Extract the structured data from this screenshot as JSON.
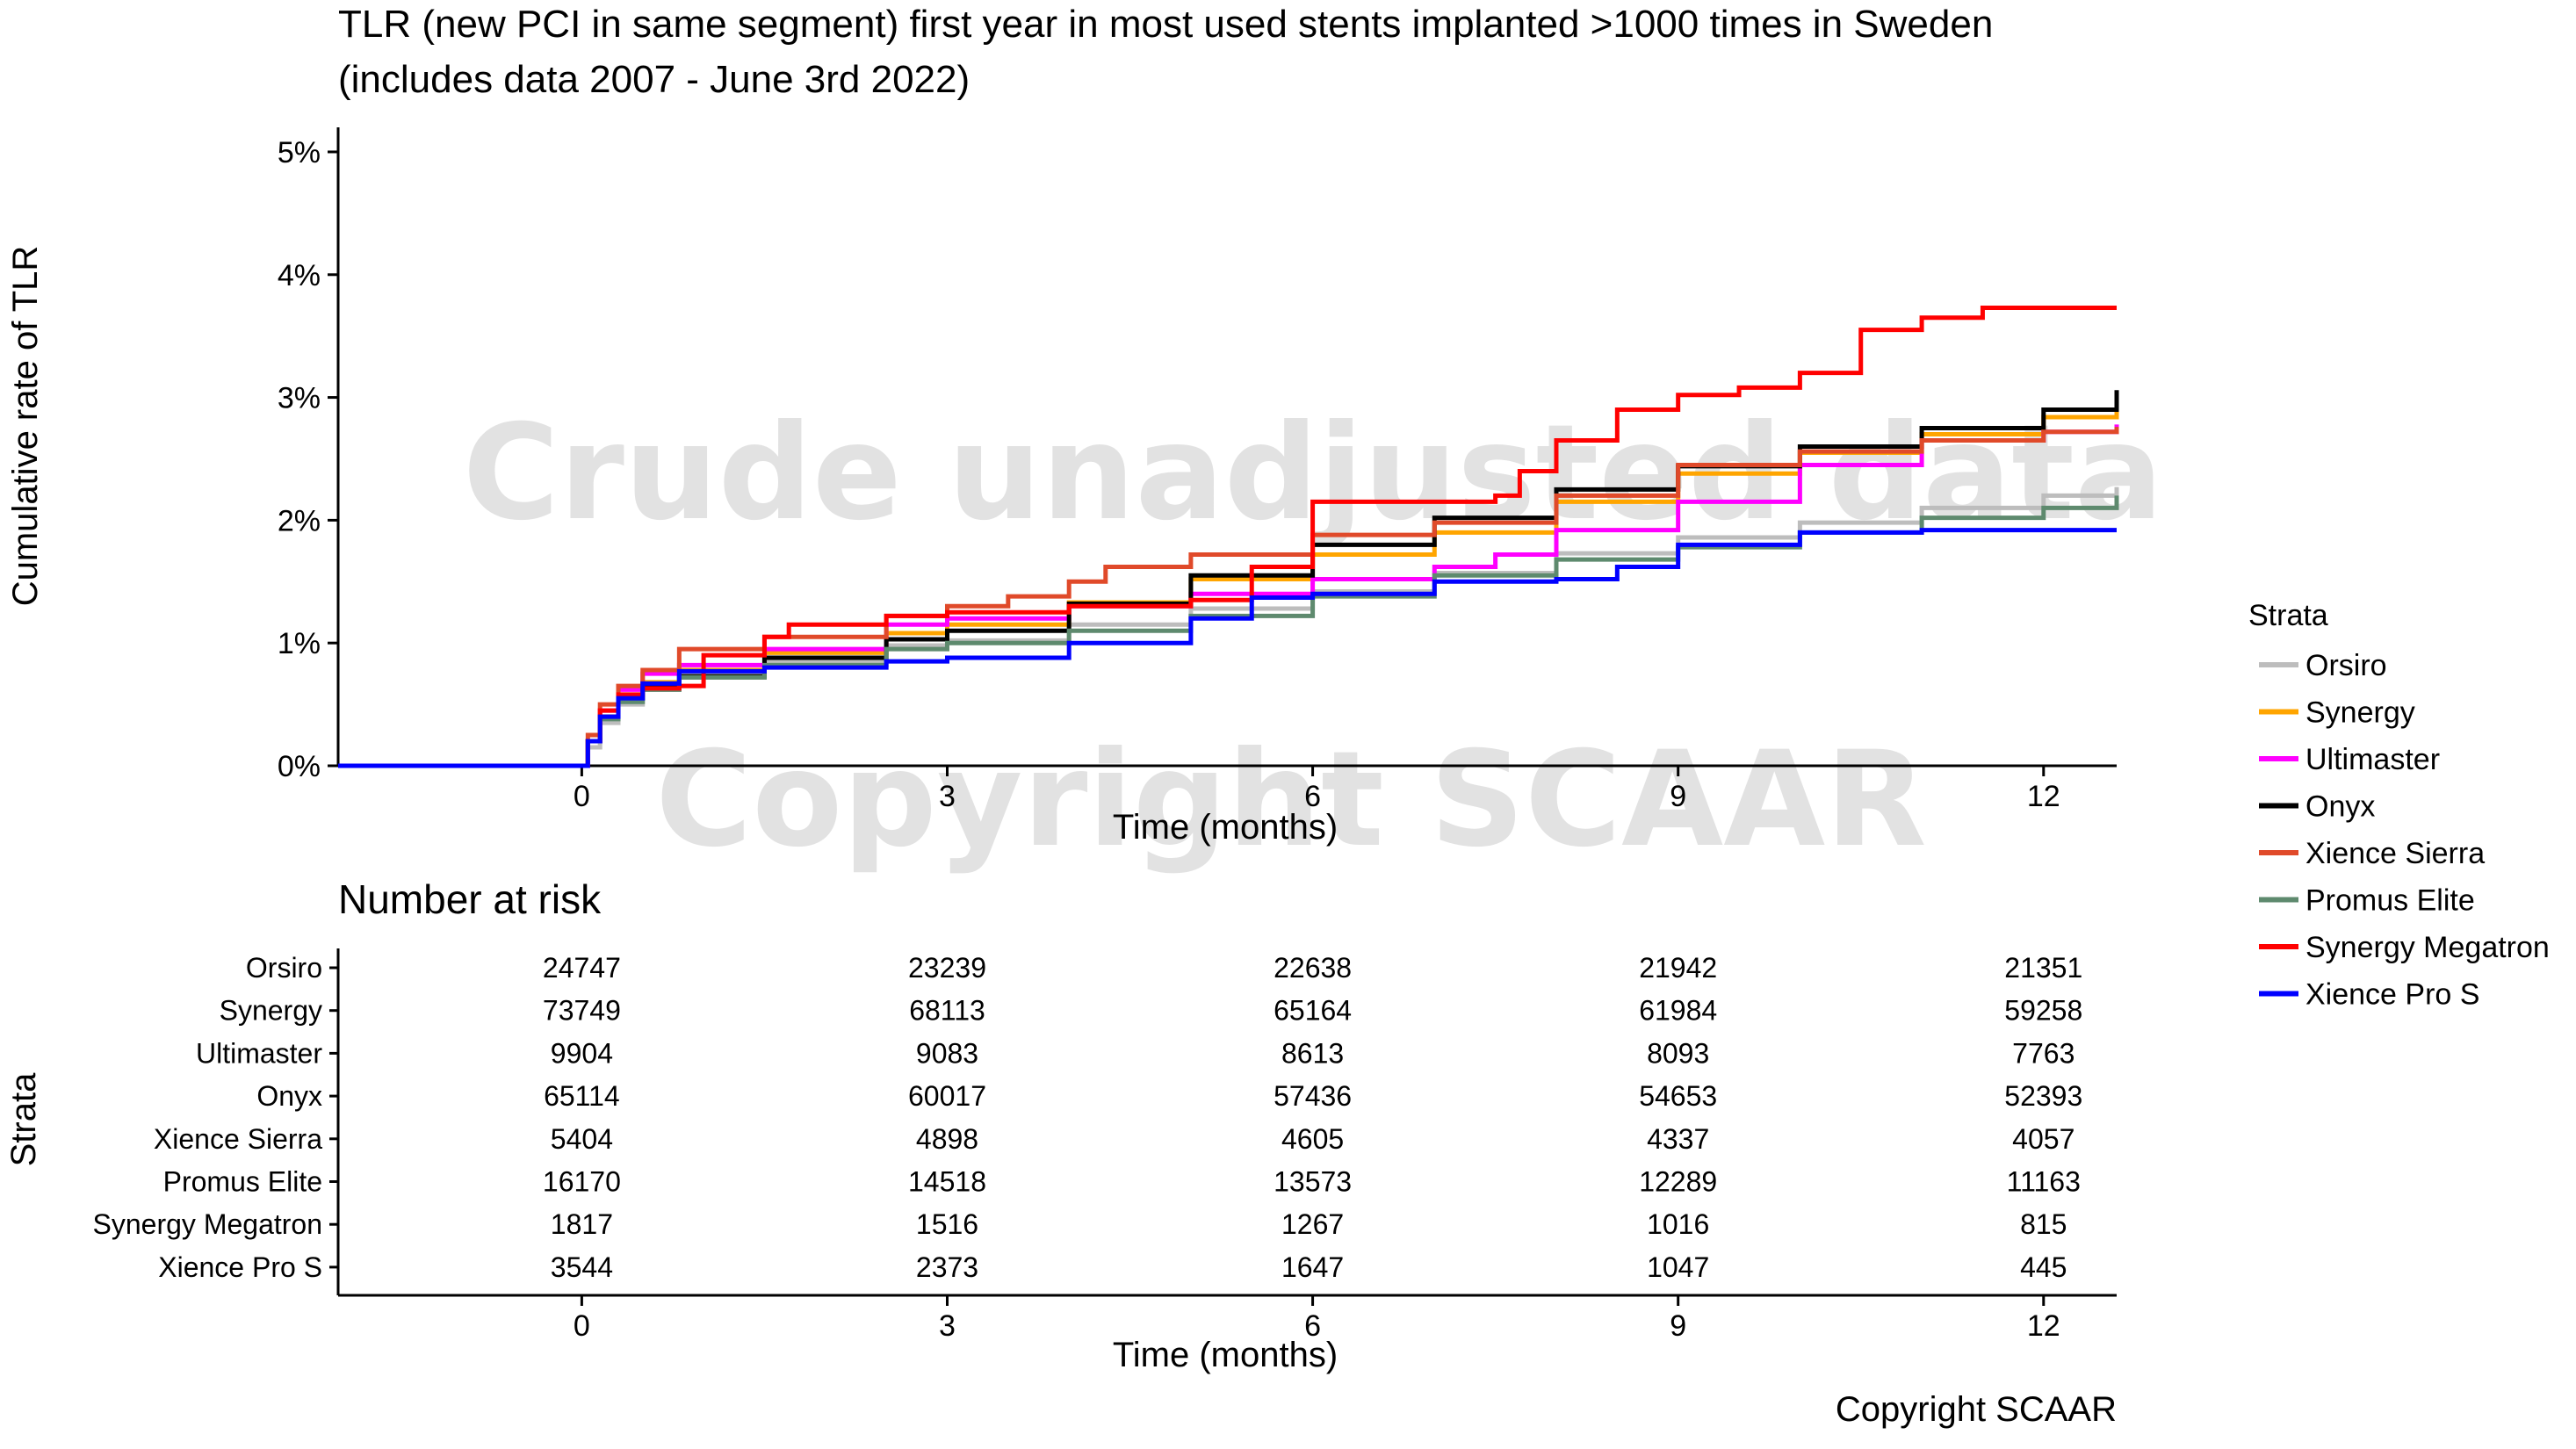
{
  "chart_data": {
    "type": "line",
    "title_line1": "TLR (new PCI in same segment) first year in most used stents implanted >1000 times in Sweden",
    "title_line2": "(includes data 2007 - June 3rd 2022)",
    "ylabel": "Cumulative rate of TLR",
    "xlabel": "Time (months)",
    "xlim": [
      -2,
      12.6
    ],
    "ylim": [
      0,
      5.2
    ],
    "xticks": [
      0,
      3,
      6,
      9,
      12
    ],
    "yticks": [
      0,
      1,
      2,
      3,
      4,
      5
    ],
    "ytick_labels": [
      "0%",
      "1%",
      "2%",
      "3%",
      "4%",
      "5%"
    ],
    "watermark_main": "Crude unadjusted data",
    "watermark_copyright": "Copyright SCAAR",
    "legend_title": "Strata",
    "legend_position": "right",
    "series": [
      {
        "name": "Orsiro",
        "color": "#bdbdbd",
        "points": [
          [
            -2,
            0
          ],
          [
            0,
            0
          ],
          [
            0.05,
            0.15
          ],
          [
            0.15,
            0.35
          ],
          [
            0.3,
            0.5
          ],
          [
            0.5,
            0.62
          ],
          [
            0.8,
            0.72
          ],
          [
            1.5,
            0.85
          ],
          [
            2.5,
            0.98
          ],
          [
            3,
            1.02
          ],
          [
            4,
            1.15
          ],
          [
            5,
            1.28
          ],
          [
            6,
            1.42
          ],
          [
            7,
            1.57
          ],
          [
            8,
            1.73
          ],
          [
            9,
            1.86
          ],
          [
            10,
            1.98
          ],
          [
            11,
            2.1
          ],
          [
            12,
            2.2
          ],
          [
            12.6,
            2.27
          ]
        ]
      },
      {
        "name": "Synergy",
        "color": "#ffa500",
        "points": [
          [
            -2,
            0
          ],
          [
            0,
            0
          ],
          [
            0.05,
            0.2
          ],
          [
            0.15,
            0.4
          ],
          [
            0.3,
            0.55
          ],
          [
            0.5,
            0.68
          ],
          [
            0.8,
            0.78
          ],
          [
            1.5,
            0.92
          ],
          [
            2.5,
            1.08
          ],
          [
            3,
            1.15
          ],
          [
            4,
            1.33
          ],
          [
            5,
            1.52
          ],
          [
            6,
            1.72
          ],
          [
            7,
            1.9
          ],
          [
            8,
            2.15
          ],
          [
            9,
            2.38
          ],
          [
            10,
            2.55
          ],
          [
            11,
            2.7
          ],
          [
            12,
            2.84
          ],
          [
            12.6,
            2.98
          ]
        ]
      },
      {
        "name": "Ultimaster",
        "color": "#ff00ff",
        "points": [
          [
            -2,
            0
          ],
          [
            0,
            0
          ],
          [
            0.05,
            0.2
          ],
          [
            0.15,
            0.45
          ],
          [
            0.3,
            0.62
          ],
          [
            0.5,
            0.75
          ],
          [
            0.8,
            0.82
          ],
          [
            1.5,
            0.95
          ],
          [
            2.5,
            1.15
          ],
          [
            3,
            1.2
          ],
          [
            4,
            1.3
          ],
          [
            5,
            1.4
          ],
          [
            6,
            1.52
          ],
          [
            7,
            1.62
          ],
          [
            7.5,
            1.72
          ],
          [
            8,
            1.92
          ],
          [
            9,
            2.15
          ],
          [
            10,
            2.45
          ],
          [
            11,
            2.65
          ],
          [
            12,
            2.72
          ],
          [
            12.6,
            2.78
          ]
        ]
      },
      {
        "name": "Onyx",
        "color": "#000000",
        "points": [
          [
            -2,
            0
          ],
          [
            0,
            0
          ],
          [
            0.05,
            0.2
          ],
          [
            0.15,
            0.4
          ],
          [
            0.3,
            0.55
          ],
          [
            0.5,
            0.65
          ],
          [
            0.8,
            0.73
          ],
          [
            1.5,
            0.88
          ],
          [
            2.5,
            1.03
          ],
          [
            3,
            1.1
          ],
          [
            4,
            1.32
          ],
          [
            5,
            1.55
          ],
          [
            6,
            1.8
          ],
          [
            7,
            2.02
          ],
          [
            8,
            2.25
          ],
          [
            9,
            2.44
          ],
          [
            10,
            2.6
          ],
          [
            11,
            2.75
          ],
          [
            12,
            2.9
          ],
          [
            12.6,
            3.06
          ]
        ]
      },
      {
        "name": "Xience Sierra",
        "color": "#e04a2a",
        "points": [
          [
            -2,
            0
          ],
          [
            0,
            0
          ],
          [
            0.05,
            0.25
          ],
          [
            0.15,
            0.5
          ],
          [
            0.3,
            0.65
          ],
          [
            0.5,
            0.78
          ],
          [
            0.8,
            0.95
          ],
          [
            1.5,
            1.05
          ],
          [
            2.5,
            1.22
          ],
          [
            3,
            1.3
          ],
          [
            3.5,
            1.38
          ],
          [
            4,
            1.5
          ],
          [
            4.3,
            1.62
          ],
          [
            5,
            1.72
          ],
          [
            6,
            1.88
          ],
          [
            7,
            1.98
          ],
          [
            8,
            2.2
          ],
          [
            9,
            2.45
          ],
          [
            10,
            2.56
          ],
          [
            11,
            2.65
          ],
          [
            12,
            2.72
          ],
          [
            12.6,
            2.76
          ]
        ]
      },
      {
        "name": "Promus Elite",
        "color": "#5e8a6e",
        "points": [
          [
            -2,
            0
          ],
          [
            0,
            0
          ],
          [
            0.05,
            0.2
          ],
          [
            0.15,
            0.38
          ],
          [
            0.3,
            0.52
          ],
          [
            0.5,
            0.62
          ],
          [
            0.8,
            0.72
          ],
          [
            1.5,
            0.82
          ],
          [
            2.5,
            0.95
          ],
          [
            3,
            1.0
          ],
          [
            4,
            1.1
          ],
          [
            5,
            1.22
          ],
          [
            6,
            1.38
          ],
          [
            7,
            1.55
          ],
          [
            8,
            1.68
          ],
          [
            9,
            1.78
          ],
          [
            10,
            1.9
          ],
          [
            11,
            2.02
          ],
          [
            12,
            2.1
          ],
          [
            12.6,
            2.2
          ]
        ]
      },
      {
        "name": "Synergy Megatron",
        "color": "#ff0000",
        "points": [
          [
            -2,
            0
          ],
          [
            0,
            0
          ],
          [
            0.05,
            0.2
          ],
          [
            0.15,
            0.45
          ],
          [
            0.3,
            0.58
          ],
          [
            0.5,
            0.63
          ],
          [
            0.8,
            0.65
          ],
          [
            1,
            0.9
          ],
          [
            1.5,
            1.05
          ],
          [
            1.7,
            1.15
          ],
          [
            2.5,
            1.22
          ],
          [
            3,
            1.25
          ],
          [
            4,
            1.3
          ],
          [
            5,
            1.35
          ],
          [
            5.5,
            1.62
          ],
          [
            6,
            2.15
          ],
          [
            7,
            2.15
          ],
          [
            7.5,
            2.2
          ],
          [
            7.7,
            2.4
          ],
          [
            8,
            2.65
          ],
          [
            8.5,
            2.9
          ],
          [
            9,
            3.02
          ],
          [
            9.5,
            3.08
          ],
          [
            10,
            3.2
          ],
          [
            10.5,
            3.55
          ],
          [
            11,
            3.65
          ],
          [
            11.5,
            3.73
          ],
          [
            12,
            3.73
          ],
          [
            12.6,
            3.73
          ]
        ]
      },
      {
        "name": "Xience Pro S",
        "color": "#0000ff",
        "points": [
          [
            -2,
            0
          ],
          [
            0,
            0
          ],
          [
            0.05,
            0.2
          ],
          [
            0.15,
            0.4
          ],
          [
            0.3,
            0.55
          ],
          [
            0.5,
            0.67
          ],
          [
            0.8,
            0.77
          ],
          [
            1.5,
            0.8
          ],
          [
            2.5,
            0.85
          ],
          [
            3,
            0.88
          ],
          [
            4,
            1.0
          ],
          [
            5,
            1.2
          ],
          [
            5.5,
            1.37
          ],
          [
            6,
            1.4
          ],
          [
            7,
            1.5
          ],
          [
            8,
            1.52
          ],
          [
            8.5,
            1.62
          ],
          [
            9,
            1.8
          ],
          [
            10,
            1.9
          ],
          [
            11,
            1.92
          ],
          [
            12,
            1.92
          ],
          [
            12.6,
            1.92
          ]
        ]
      }
    ],
    "risk_table": {
      "title": "Number at risk",
      "ylabel": "Strata",
      "xlabel": "Time (months)",
      "times": [
        0,
        3,
        6,
        9,
        12
      ],
      "rows": [
        {
          "name": "Orsiro",
          "color": "#bdbdbd",
          "values": [
            "24747",
            "23239",
            "22638",
            "21942",
            "21351"
          ]
        },
        {
          "name": "Synergy",
          "color": "#ffa500",
          "values": [
            "73749",
            "68113",
            "65164",
            "61984",
            "59258"
          ]
        },
        {
          "name": "Ultimaster",
          "color": "#ff00ff",
          "values": [
            "9904",
            "9083",
            "8613",
            "8093",
            "7763"
          ]
        },
        {
          "name": "Onyx",
          "color": "#000000",
          "values": [
            "65114",
            "60017",
            "57436",
            "54653",
            "52393"
          ]
        },
        {
          "name": "Xience Sierra",
          "color": "#e04a2a",
          "values": [
            "5404",
            "4898",
            "4605",
            "4337",
            "4057"
          ]
        },
        {
          "name": "Promus Elite",
          "color": "#5e8a6e",
          "values": [
            "16170",
            "14518",
            "13573",
            "12289",
            "11163"
          ]
        },
        {
          "name": "Synergy Megatron",
          "color": "#ff0000",
          "values": [
            "1817",
            "1516",
            "1267",
            "1016",
            "815"
          ]
        },
        {
          "name": "Xience Pro S",
          "color": "#0000ff",
          "values": [
            "3544",
            "2373",
            "1647",
            "1047",
            "445"
          ]
        }
      ]
    },
    "footer": "Copyright SCAAR"
  }
}
